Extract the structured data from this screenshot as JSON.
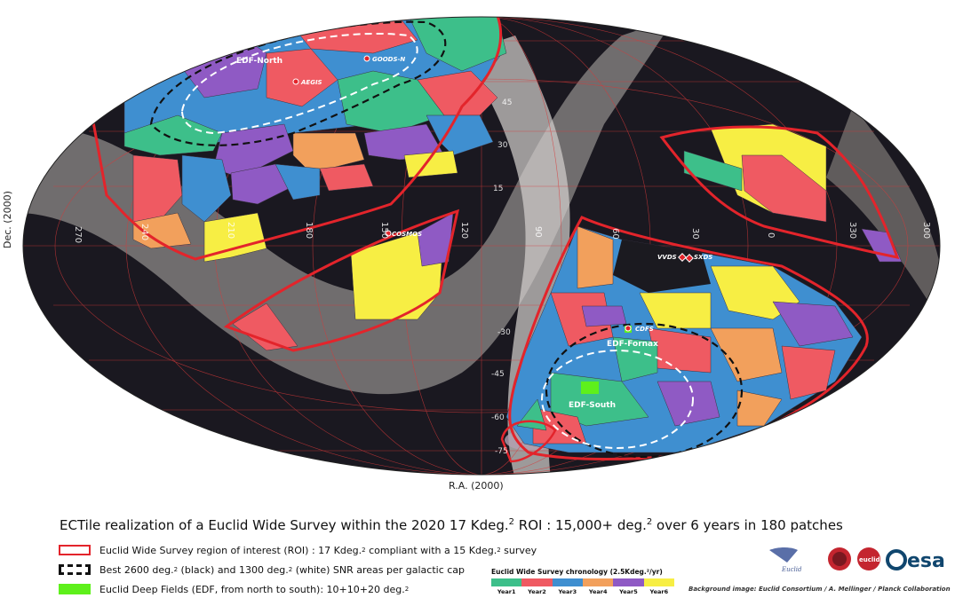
{
  "axes": {
    "ylabel": "Dec. (2000)",
    "xlabel": "R.A. (2000)",
    "ra_ticks": [
      "270",
      "240",
      "210",
      "180",
      "150",
      "120",
      "90",
      "60",
      "30",
      "0",
      "330",
      "300"
    ],
    "dec_ticks": [
      "-75",
      "-60",
      "-45",
      "-30",
      "15",
      "30",
      "45"
    ]
  },
  "fields": {
    "edf_north": "EDF-North",
    "edf_fornax": "EDF-Fornax",
    "edf_south": "EDF-South",
    "goods_n": "GOODS-N",
    "aegis": "AEGIS",
    "cosmos": "COSMOS",
    "vvds": "VVDS",
    "sxds": "SXDS",
    "cdfs": "CDFS"
  },
  "caption": {
    "pre": "ECTile realization of a Euclid Wide Survey within the 2020 17 Kdeg.",
    "sup": "2",
    "mid": " ROI : 15,000+ deg.",
    "sup2": "2",
    "post": " over 6 years in 180 patches"
  },
  "legend": {
    "roi_a": "Euclid Wide Survey region of interest (ROI) : 17 Kdeg.",
    "roi_b": " compliant with a 15 Kdeg.",
    "roi_c": " survey",
    "snr_a": "Best 2600 deg.",
    "snr_b": " (black) and 1300 deg.",
    "snr_c": " (white) SNR areas per galactic cap",
    "edf_a": "Euclid Deep Fields (EDF, from north to south): 10+10+20 deg.",
    "sup": "2"
  },
  "chronology": {
    "title": "Euclid Wide Survey chronology (2.5Kdeg.²/yr)",
    "years": [
      "Year1",
      "Year2",
      "Year3",
      "Year4",
      "Year5",
      "Year6"
    ],
    "colors": [
      "#3dbf8a",
      "#ef5a62",
      "#3f8fd0",
      "#f2a05c",
      "#8f5ac4",
      "#f7ee44"
    ]
  },
  "credit": "Background image: Euclid Consortium / A. Mellinger / Planck Collaboration",
  "logos": {
    "euclid_small": "Euclid",
    "euclid": "euclid",
    "esa": "esa"
  },
  "colors": {
    "roi": "#e3242b",
    "edf": "#5ef01b",
    "sky": "#15141a",
    "milkyway": "#a9a5a2"
  }
}
